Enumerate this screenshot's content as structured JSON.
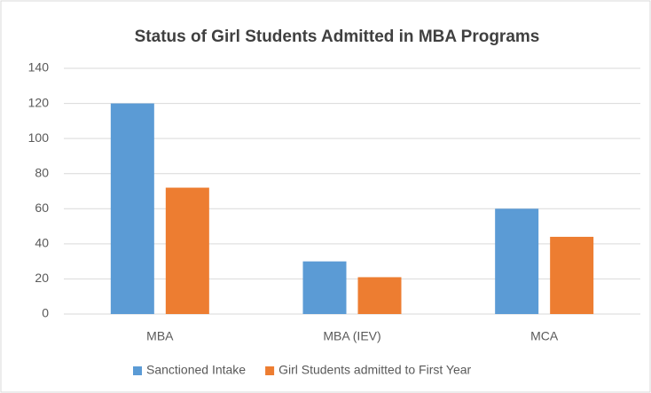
{
  "chart_data": {
    "type": "bar",
    "title": "Status of Girl Students Admitted in MBA Programs",
    "categories": [
      "MBA",
      "MBA (IEV)",
      "MCA"
    ],
    "series": [
      {
        "name": "Sanctioned Intake",
        "color": "#5b9bd5",
        "values": [
          120,
          30,
          60
        ]
      },
      {
        "name": "Girl Students admitted to First Year",
        "color": "#ed7d31",
        "values": [
          72,
          21,
          44
        ]
      }
    ],
    "ylim": [
      0,
      140
    ],
    "yticks": [
      0,
      20,
      40,
      60,
      80,
      100,
      120,
      140
    ],
    "grid": true,
    "legend": "bottom"
  }
}
